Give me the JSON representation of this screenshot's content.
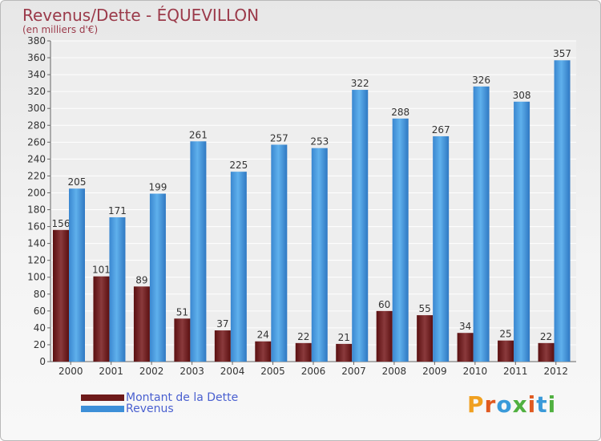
{
  "header": {
    "title": "Revenus/Dette - ÉQUEVILLON",
    "subtitle": "(en milliers d'€)"
  },
  "colors": {
    "debt": "#6e1a1a",
    "revenue": "#3d8fd8",
    "title": "#9b3a4a",
    "legend_text": "#4a60d0"
  },
  "legend": {
    "debt_label": "Montant de la Dette",
    "revenue_label": "Revenus"
  },
  "logo": {
    "text": "Proxiti"
  },
  "chart_data": {
    "type": "bar",
    "title": "Revenus/Dette - ÉQUEVILLON",
    "ylabel": "(en milliers d'€)",
    "xlabel": "",
    "categories": [
      "2000",
      "2001",
      "2002",
      "2003",
      "2004",
      "2005",
      "2006",
      "2007",
      "2008",
      "2009",
      "2010",
      "2011",
      "2012"
    ],
    "series": [
      {
        "name": "Montant de la Dette",
        "values": [
          156,
          101,
          89,
          51,
          37,
          24,
          22,
          21,
          60,
          55,
          34,
          25,
          22
        ]
      },
      {
        "name": "Revenus",
        "values": [
          205,
          171,
          199,
          261,
          225,
          257,
          253,
          322,
          288,
          267,
          326,
          308,
          357
        ]
      }
    ],
    "ylim": [
      0,
      380
    ],
    "ytick_step": 20,
    "grid": true,
    "legend_position": "bottom-left"
  }
}
